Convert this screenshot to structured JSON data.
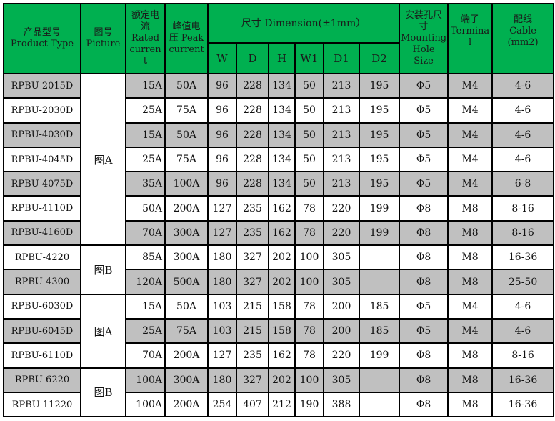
{
  "header": {
    "product_type": [
      "产品型号",
      "Product Type"
    ],
    "picture": [
      "图号",
      "Picture"
    ],
    "rated_current": [
      "额定电",
      "流",
      "Rated",
      "curren",
      "t"
    ],
    "peak_current": [
      "峰值电",
      "压 Peak",
      "current"
    ],
    "dimension": "尺寸 Dimension(±1mm）",
    "dims": [
      "W",
      "D",
      "H",
      "W1",
      "D1",
      "D2"
    ],
    "mounting": [
      "安装孔尺",
      "寸",
      "Mounting",
      "Hole",
      "Size"
    ],
    "terminal": [
      "端子",
      "Termina",
      "l"
    ],
    "cable": [
      "配线",
      "Cable",
      "(mm2)"
    ]
  },
  "colors": {
    "header_bg": "#00b050",
    "row_alt": "#c0c0c0"
  },
  "pictures": [
    {
      "label": "图A",
      "rows": 7
    },
    {
      "label": "图B",
      "rows": 2
    },
    {
      "label": "图A",
      "rows": 3
    },
    {
      "label": "图B",
      "rows": 2
    }
  ],
  "rows": [
    {
      "type": "RPBU-2015D",
      "rated": "15A",
      "peak": "50A",
      "W": "96",
      "D": "228",
      "H": "134",
      "W1": "50",
      "D1": "213",
      "D2": "195",
      "hole": "Φ5",
      "terminal": "M4",
      "cable": "4-6"
    },
    {
      "type": "RPBU-2030D",
      "rated": "25A",
      "peak": "75A",
      "W": "96",
      "D": "228",
      "H": "134",
      "W1": "50",
      "D1": "213",
      "D2": "195",
      "hole": "Φ5",
      "terminal": "M4",
      "cable": "4-6"
    },
    {
      "type": "RPBU-4030D",
      "rated": "15A",
      "peak": "50A",
      "W": "96",
      "D": "228",
      "H": "134",
      "W1": "50",
      "D1": "213",
      "D2": "195",
      "hole": "Φ5",
      "terminal": "M4",
      "cable": "4-6"
    },
    {
      "type": "RPBU-4045D",
      "rated": "25A",
      "peak": "75A",
      "W": "96",
      "D": "228",
      "H": "134",
      "W1": "50",
      "D1": "213",
      "D2": "195",
      "hole": "Φ5",
      "terminal": "M4",
      "cable": "4-6"
    },
    {
      "type": "RPBU-4075D",
      "rated": "35A",
      "peak": "100A",
      "W": "96",
      "D": "228",
      "H": "134",
      "W1": "50",
      "D1": "213",
      "D2": "195",
      "hole": "Φ5",
      "terminal": "M4",
      "cable": "6-8"
    },
    {
      "type": "RPBU-4110D",
      "rated": "50A",
      "peak": "200A",
      "W": "127",
      "D": "235",
      "H": "162",
      "W1": "78",
      "D1": "220",
      "D2": "199",
      "hole": "Φ8",
      "terminal": "M8",
      "cable": "8-16"
    },
    {
      "type": "RPBU-4160D",
      "rated": "70A",
      "peak": "300A",
      "W": "127",
      "D": "235",
      "H": "162",
      "W1": "78",
      "D1": "220",
      "D2": "199",
      "hole": "Φ8",
      "terminal": "M8",
      "cable": "8-16"
    },
    {
      "type": "RPBU-4220",
      "rated": "85A",
      "peak": "300A",
      "W": "180",
      "D": "327",
      "H": "202",
      "W1": "100",
      "D1": "305",
      "D2": "",
      "hole": "Φ8",
      "terminal": "M8",
      "cable": "16-36"
    },
    {
      "type": "RPBU-4300",
      "rated": "120A",
      "peak": "500A",
      "W": "180",
      "D": "327",
      "H": "202",
      "W1": "100",
      "D1": "305",
      "D2": "",
      "hole": "Φ8",
      "terminal": "M8",
      "cable": "25-50"
    },
    {
      "type": "RPBU-6030D",
      "rated": "15A",
      "peak": "50A",
      "W": "103",
      "D": "215",
      "H": "158",
      "W1": "78",
      "D1": "200",
      "D2": "185",
      "hole": "Φ5",
      "terminal": "M4",
      "cable": "4-6"
    },
    {
      "type": "RPBU-6045D",
      "rated": "25A",
      "peak": "75A",
      "W": "103",
      "D": "215",
      "H": "158",
      "W1": "78",
      "D1": "200",
      "D2": "185",
      "hole": "Φ5",
      "terminal": "M4",
      "cable": "4-6"
    },
    {
      "type": "RPBU-6110D",
      "rated": "70A",
      "peak": "200A",
      "W": "127",
      "D": "235",
      "H": "162",
      "W1": "78",
      "D1": "220",
      "D2": "199",
      "hole": "Φ8",
      "terminal": "M8",
      "cable": "8-16"
    },
    {
      "type": "RPBU-6220",
      "rated": "100A",
      "peak": "300A",
      "W": "180",
      "D": "327",
      "H": "202",
      "W1": "100",
      "D1": "305",
      "D2": "",
      "hole": "Φ8",
      "terminal": "M8",
      "cable": "16-36"
    },
    {
      "type": "RPBU-11220",
      "rated": "100A",
      "peak": "200A",
      "W": "254",
      "D": "407",
      "H": "212",
      "W1": "190",
      "D1": "388",
      "D2": "",
      "hole": "Φ8",
      "terminal": "M8",
      "cable": "16-36"
    }
  ]
}
